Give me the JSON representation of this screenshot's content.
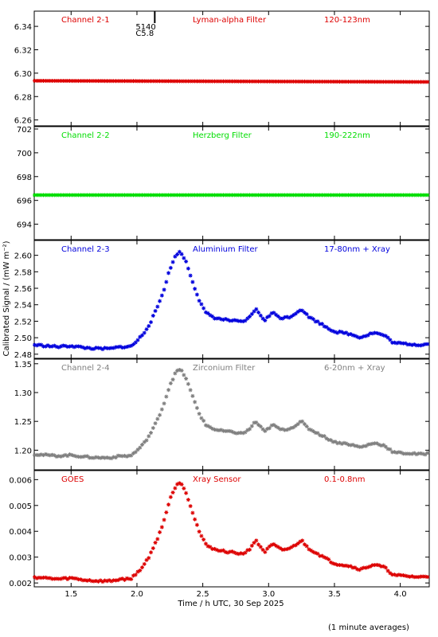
{
  "chart_data": {
    "type": "scatter",
    "xlabel": "Time / h UTC, 30 Sep 2025",
    "ylabel": "Calibrated Signal / (mW m⁻²)",
    "footnote": "(1 minute averages)",
    "xlim": [
      1.22,
      4.22
    ],
    "xticks": [
      1.5,
      2.0,
      2.5,
      3.0,
      3.5,
      4.0
    ],
    "xtick_labels": [
      "1.5",
      "2.0",
      "2.5",
      "3.0",
      "3.5",
      "4.0"
    ],
    "flare_marker": {
      "x": 2.22,
      "number": "5140",
      "class": "C5.8"
    },
    "panels": [
      {
        "channel": "Channel 2-1",
        "filter": "Lyman-alpha Filter",
        "band": "120-123nm",
        "color": "#dd0000",
        "ylim": [
          6.255,
          6.353
        ],
        "yticks": [
          6.26,
          6.28,
          6.3,
          6.32,
          6.34
        ],
        "ytick_labels": [
          "6.26",
          "6.28",
          "6.30",
          "6.32",
          "6.34"
        ],
        "profile": "flat",
        "baseline": 6.2935,
        "baseline_end": 6.2925
      },
      {
        "channel": "Channel 2-2",
        "filter": "Herzberg Filter",
        "band": "190-222nm",
        "color": "#00dd00",
        "ylim": [
          692.7,
          702.2
        ],
        "yticks": [
          694,
          696,
          698,
          700,
          702
        ],
        "ytick_labels": [
          "694",
          "696",
          "698",
          "700",
          "702"
        ],
        "profile": "flat",
        "baseline": 696.45,
        "baseline_end": 696.45
      },
      {
        "channel": "Channel 2-3",
        "filter": "Aluminium Filter",
        "band": "17-80nm + Xray",
        "color": "#0000dd",
        "ylim": [
          2.475,
          2.618
        ],
        "yticks": [
          2.48,
          2.5,
          2.52,
          2.54,
          2.56,
          2.58,
          2.6
        ],
        "ytick_labels": [
          "2.48",
          "2.50",
          "2.52",
          "2.54",
          "2.56",
          "2.58",
          "2.60"
        ],
        "profile": "flare",
        "baseline": 2.489,
        "peak": 2.604
      },
      {
        "channel": "Channel 2-4",
        "filter": "Zirconium Filter",
        "band": "6-20nm + Xray",
        "color": "#808080",
        "ylim": [
          1.166,
          1.358
        ],
        "yticks": [
          1.2,
          1.25,
          1.3,
          1.35
        ],
        "ytick_labels": [
          "1.20",
          "1.25",
          "1.30",
          "1.35"
        ],
        "profile": "flare",
        "baseline": 1.19,
        "peak": 1.34
      },
      {
        "channel": "GOES",
        "filter": "Xray Sensor",
        "band": "0.1-0.8nm",
        "color": "#dd0000",
        "ylim": [
          0.00185,
          0.00635
        ],
        "yticks": [
          0.002,
          0.003,
          0.004,
          0.005,
          0.006
        ],
        "ytick_labels": [
          "0.002",
          "0.003",
          "0.004",
          "0.005",
          "0.006"
        ],
        "profile": "flare",
        "baseline": 0.00215,
        "peak": 0.0059
      }
    ]
  }
}
